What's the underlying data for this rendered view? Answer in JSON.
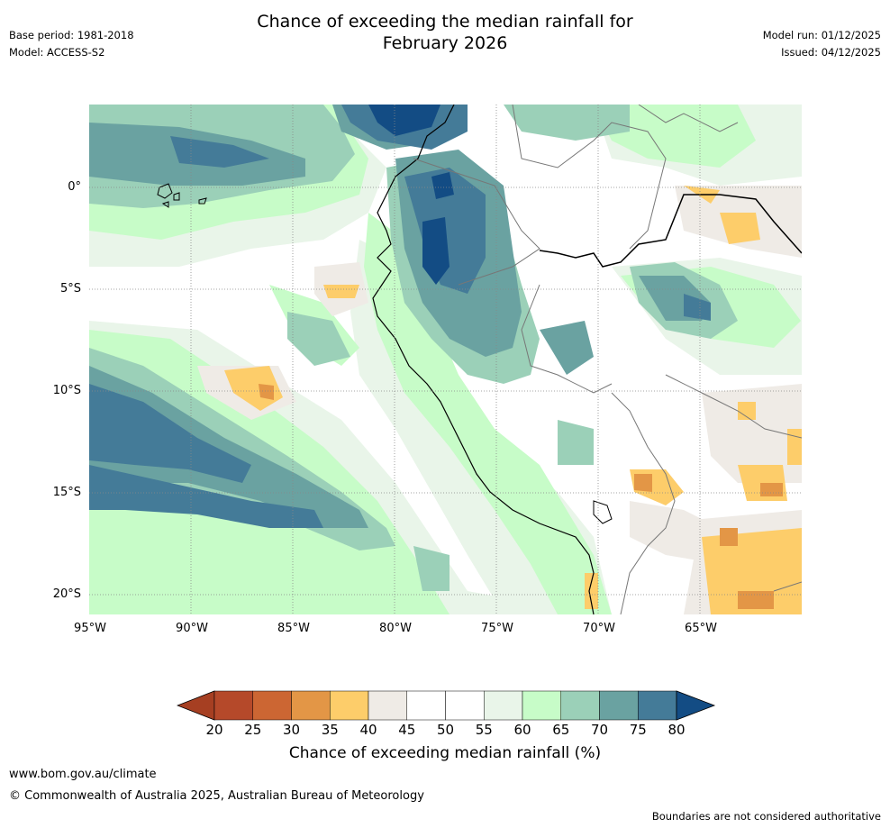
{
  "title_line1": "Chance of exceeding the median rainfall for",
  "title_line2": "February 2026",
  "base_period": "Base period: 1981-2018",
  "model": "Model: ACCESS-S2",
  "model_run": "Model run: 01/12/2025",
  "issued": "Issued: 04/12/2025",
  "lat_labels": [
    "0°",
    "5°S",
    "10°S",
    "15°S",
    "20°S"
  ],
  "lon_labels": [
    "95°W",
    "90°W",
    "85°W",
    "80°W",
    "75°W",
    "70°W",
    "65°W"
  ],
  "legend": {
    "title": "Chance of exceeding median rainfall (%)",
    "ticks": [
      "20",
      "25",
      "30",
      "35",
      "40",
      "45",
      "50",
      "55",
      "60",
      "65",
      "70",
      "75",
      "80"
    ],
    "colors": [
      "#a63f22",
      "#b5492a",
      "#cc6633",
      "#e39646",
      "#fdcd6a",
      "#efebe6",
      "#ffffff",
      "#ffffff",
      "#e9f5e9",
      "#c7fcc8",
      "#9bd0b8",
      "#6aa2a1",
      "#447b98",
      "#134c84"
    ]
  },
  "footer": {
    "url": "www.bom.gov.au/climate",
    "copyright": "© Commonwealth of Australia 2025, Australian Bureau of Meteorology",
    "disclaimer": "Boundaries are not considered authoritative"
  }
}
